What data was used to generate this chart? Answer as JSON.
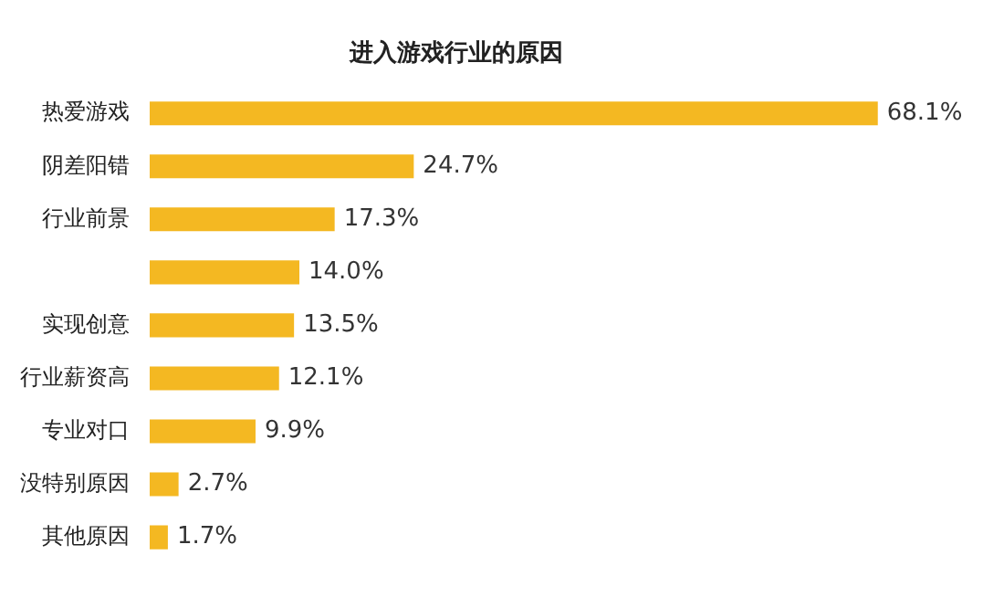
{
  "chart_data": {
    "type": "bar",
    "orientation": "horizontal",
    "title": "进入游戏行业的原因",
    "categories": [
      "热爱游戏",
      "阴差阳错",
      "行业前景",
      null,
      "实现创意",
      "行业薪资高",
      "专业对口",
      "没特别原因",
      "其他原因"
    ],
    "values": [
      68.1,
      24.7,
      17.3,
      14.0,
      13.5,
      12.1,
      9.9,
      2.7,
      1.7
    ],
    "value_labels": [
      "68.1%",
      "24.7%",
      "17.3%",
      "14.0%",
      "13.5%",
      "12.1%",
      "9.9%",
      "2.7%",
      "1.7%"
    ],
    "color": "#f4b822",
    "legend": false,
    "tick_labels": "y"
  }
}
